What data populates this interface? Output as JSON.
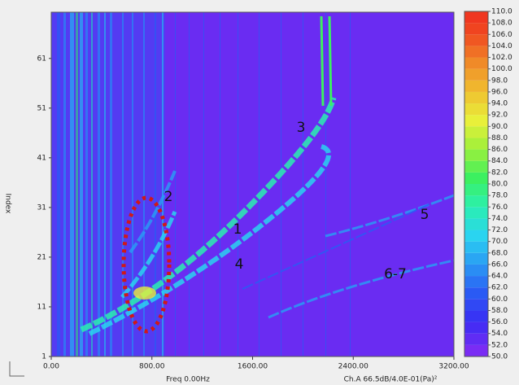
{
  "chart_data": {
    "type": "spectrogram",
    "xlabel": "Freq 0.00Hz",
    "footer": "Ch.A 66.5dB/4.0E-01(Pa)²",
    "ylabel": "Index",
    "xlim": [
      0,
      3200
    ],
    "xticks": [
      {
        "value": 0,
        "label": "0.00"
      },
      {
        "value": 800,
        "label": "800.00"
      },
      {
        "value": 1600,
        "label": "1600.00"
      },
      {
        "value": 2400,
        "label": "2400.00"
      },
      {
        "value": 3200,
        "label": "3200.00"
      }
    ],
    "ylim": [
      1,
      70.3
    ],
    "yticks": [
      1,
      11,
      21,
      31,
      41,
      51,
      61
    ],
    "background": "#6a2cf2",
    "colorbar": {
      "lim": [
        50,
        110
      ],
      "ticks": [
        {
          "value": 50,
          "label": "50.0"
        },
        {
          "value": 52,
          "label": "52.0"
        },
        {
          "value": 54,
          "label": "54.0"
        },
        {
          "value": 56,
          "label": "56.0"
        },
        {
          "value": 58,
          "label": "58.0"
        },
        {
          "value": 60,
          "label": "60.0"
        },
        {
          "value": 62,
          "label": "62.0"
        },
        {
          "value": 64,
          "label": "64.0"
        },
        {
          "value": 66,
          "label": "66.0"
        },
        {
          "value": 68,
          "label": "68.0"
        },
        {
          "value": 70,
          "label": "70.0"
        },
        {
          "value": 72,
          "label": "72.0"
        },
        {
          "value": 74,
          "label": "74.0"
        },
        {
          "value": 76,
          "label": "76.0"
        },
        {
          "value": 78,
          "label": "78.0"
        },
        {
          "value": 80,
          "label": "80.0"
        },
        {
          "value": 82,
          "label": "82.0"
        },
        {
          "value": 84,
          "label": "84.0"
        },
        {
          "value": 86,
          "label": "86.0"
        },
        {
          "value": 88,
          "label": "88.0"
        },
        {
          "value": 90,
          "label": "90.0"
        },
        {
          "value": 92,
          "label": "92.0"
        },
        {
          "value": 94,
          "label": "94.0"
        },
        {
          "value": 96,
          "label": "96.0"
        },
        {
          "value": 98,
          "label": "98.0"
        },
        {
          "value": 100,
          "label": "100.0"
        },
        {
          "value": 102,
          "label": "102.0"
        },
        {
          "value": 104,
          "label": "104.0"
        },
        {
          "value": 106,
          "label": "106.0"
        },
        {
          "value": 108,
          "label": "108.0"
        },
        {
          "value": 110,
          "label": "110.0"
        }
      ],
      "colors": [
        "#7a2cf4",
        "#3a2cf4",
        "#2a5af4",
        "#2a9af4",
        "#2ad4f0",
        "#2af0b0",
        "#3cf060",
        "#9cf03a",
        "#e8f03a",
        "#f0c030",
        "#f08a28",
        "#f04a20",
        "#f02a20"
      ]
    },
    "annotations": [
      "1",
      "2",
      "3",
      "4",
      "5",
      "6-7"
    ]
  }
}
